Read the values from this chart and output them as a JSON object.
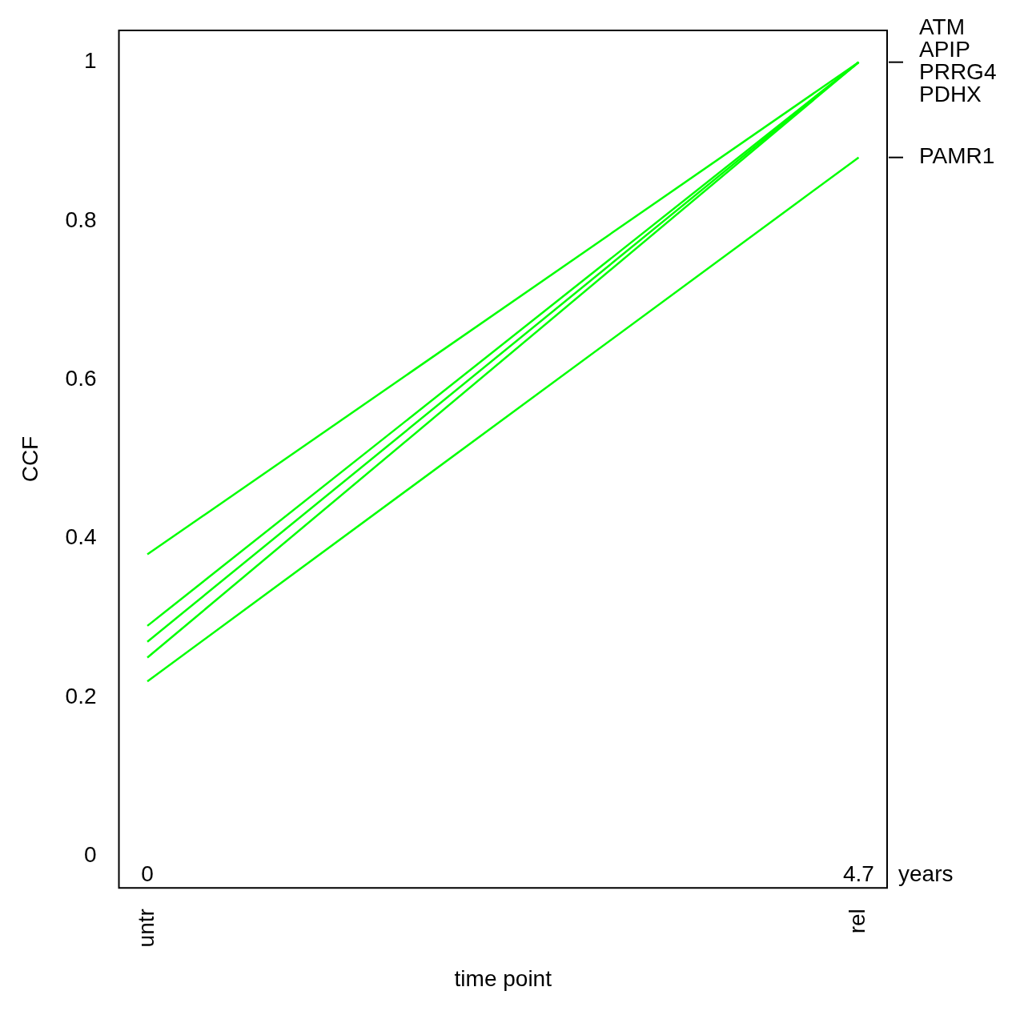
{
  "chart_data": {
    "type": "line",
    "xlabel": "time point",
    "ylabel": "CCF",
    "categories": [
      "untr",
      "rel"
    ],
    "series": [
      {
        "name": "ATM",
        "color": "#00ff00",
        "values": [
          0.38,
          1
        ]
      },
      {
        "name": "APIP",
        "color": "#00ff00",
        "values": [
          0.29,
          1
        ]
      },
      {
        "name": "PRRG4",
        "color": "#00ff00",
        "values": [
          0.27,
          1
        ]
      },
      {
        "name": "PDHX",
        "color": "#00ff00",
        "values": [
          0.25,
          1
        ]
      },
      {
        "name": "PAMR1",
        "color": "#00ff00",
        "values": [
          0.22,
          0.88
        ]
      }
    ],
    "ylim": [
      -0.04,
      1.04
    ],
    "yticks": [
      0,
      0.2,
      0.4,
      0.6,
      0.8,
      1
    ],
    "annotations": [
      "0",
      "4.7 years"
    ],
    "grid": false,
    "legend": false,
    "marker": "none",
    "line_style": "solid"
  }
}
